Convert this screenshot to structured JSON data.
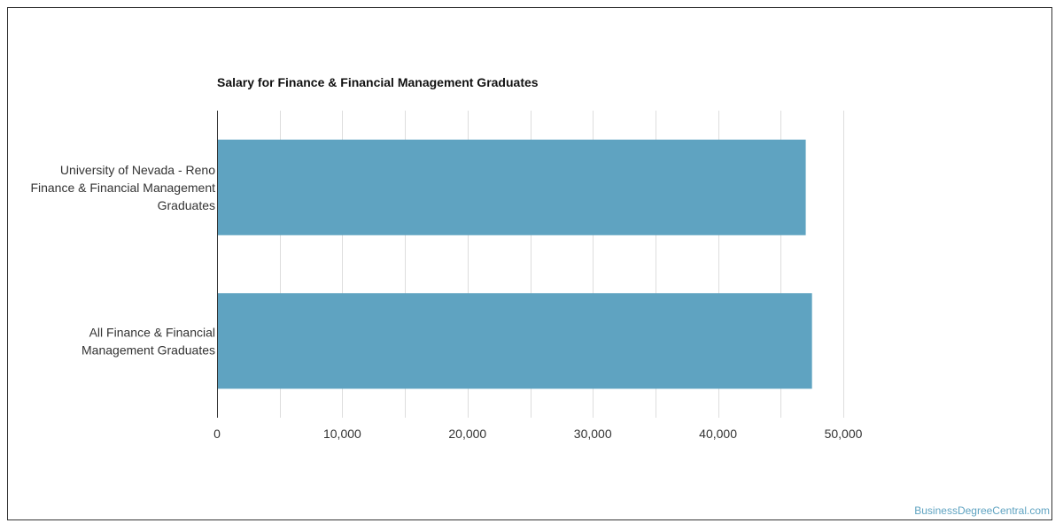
{
  "chart_data": {
    "type": "bar",
    "orientation": "horizontal",
    "title": "Salary for Finance & Financial Management Graduates",
    "categories": [
      [
        "University of Nevada - Reno",
        "Finance & Financial Management",
        "Graduates"
      ],
      [
        "All Finance & Financial",
        "Management Graduates"
      ]
    ],
    "values": [
      47000,
      47500
    ],
    "xlim": [
      0,
      50000
    ],
    "x_ticks": [
      0,
      10000,
      20000,
      30000,
      40000,
      50000
    ],
    "x_tick_labels": [
      "0",
      "10,000",
      "20,000",
      "30,000",
      "40,000",
      "50,000"
    ],
    "grid": true,
    "bar_color": "#5fa3c1",
    "xlabel": "",
    "ylabel": ""
  },
  "footer": {
    "credit": "BusinessDegreeCentral.com"
  }
}
